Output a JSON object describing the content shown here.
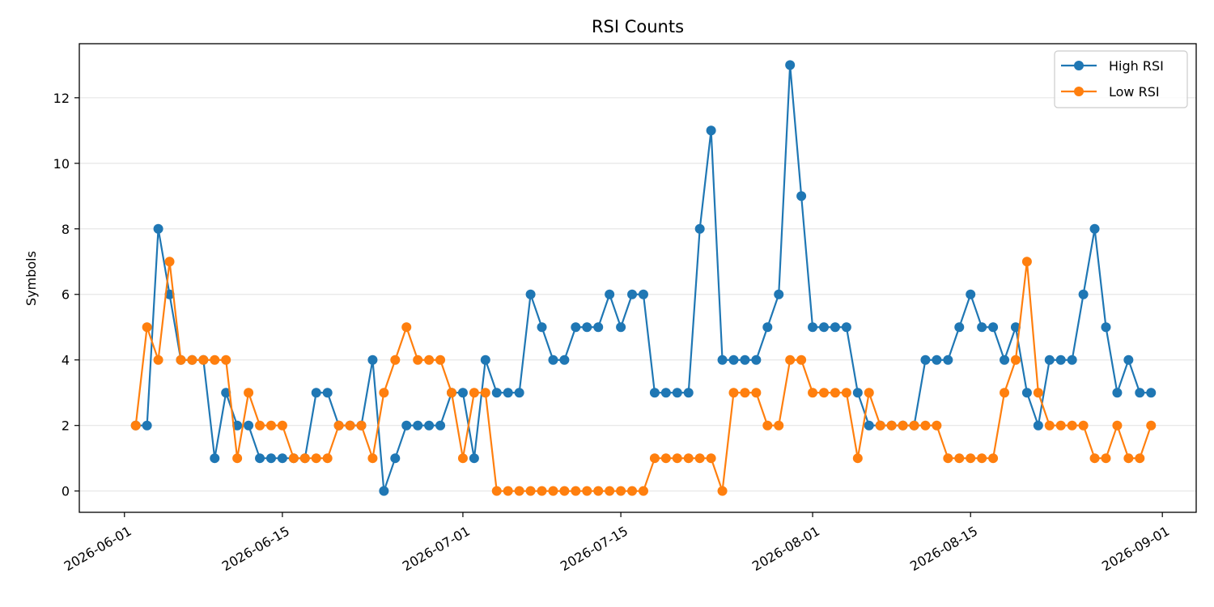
{
  "chart_data": {
    "type": "line",
    "title": "RSI Counts",
    "xlabel": "",
    "ylabel": "Symbols",
    "x_ticks": [
      "2026-06-01",
      "2026-06-15",
      "2026-07-01",
      "2026-07-15",
      "2026-08-01",
      "2026-08-15",
      "2026-09-01"
    ],
    "y_ticks": [
      0,
      2,
      4,
      6,
      8,
      10,
      12
    ],
    "xlim": [
      "2026-05-28",
      "2026-09-04"
    ],
    "ylim": [
      -0.65,
      13.65
    ],
    "grid": "horizontal",
    "legend_position": "top-right",
    "x": [
      "2026-06-02",
      "2026-06-03",
      "2026-06-04",
      "2026-06-05",
      "2026-06-06",
      "2026-06-07",
      "2026-06-08",
      "2026-06-09",
      "2026-06-10",
      "2026-06-11",
      "2026-06-12",
      "2026-06-13",
      "2026-06-14",
      "2026-06-15",
      "2026-06-16",
      "2026-06-17",
      "2026-06-18",
      "2026-06-19",
      "2026-06-20",
      "2026-06-21",
      "2026-06-22",
      "2026-06-23",
      "2026-06-24",
      "2026-06-25",
      "2026-06-26",
      "2026-06-27",
      "2026-06-28",
      "2026-06-29",
      "2026-06-30",
      "2026-07-01",
      "2026-07-02",
      "2026-07-03",
      "2026-07-04",
      "2026-07-05",
      "2026-07-06",
      "2026-07-07",
      "2026-07-08",
      "2026-07-09",
      "2026-07-10",
      "2026-07-11",
      "2026-07-12",
      "2026-07-13",
      "2026-07-14",
      "2026-07-15",
      "2026-07-16",
      "2026-07-17",
      "2026-07-18",
      "2026-07-19",
      "2026-07-20",
      "2026-07-21",
      "2026-07-22",
      "2026-07-23",
      "2026-07-24",
      "2026-07-25",
      "2026-07-26",
      "2026-07-27",
      "2026-07-28",
      "2026-07-29",
      "2026-07-30",
      "2026-07-31",
      "2026-08-01",
      "2026-08-02",
      "2026-08-03",
      "2026-08-04",
      "2026-08-05",
      "2026-08-06",
      "2026-08-07",
      "2026-08-08",
      "2026-08-09",
      "2026-08-10",
      "2026-08-11",
      "2026-08-12",
      "2026-08-13",
      "2026-08-14",
      "2026-08-15",
      "2026-08-16",
      "2026-08-17",
      "2026-08-18",
      "2026-08-19",
      "2026-08-20",
      "2026-08-21",
      "2026-08-22",
      "2026-08-23",
      "2026-08-24",
      "2026-08-25",
      "2026-08-26",
      "2026-08-27",
      "2026-08-28",
      "2026-08-29",
      "2026-08-30",
      "2026-08-31"
    ],
    "series": [
      {
        "name": "High RSI",
        "color": "#1f77b4",
        "values": [
          2,
          2,
          8,
          6,
          4,
          4,
          4,
          1,
          3,
          2,
          2,
          1,
          1,
          1,
          1,
          1,
          3,
          3,
          2,
          2,
          2,
          4,
          0,
          1,
          2,
          2,
          2,
          2,
          3,
          3,
          1,
          4,
          3,
          3,
          3,
          6,
          5,
          4,
          4,
          5,
          5,
          5,
          6,
          5,
          6,
          6,
          3,
          3,
          3,
          3,
          8,
          11,
          4,
          4,
          4,
          4,
          5,
          6,
          13,
          9,
          5,
          5,
          5,
          5,
          3,
          2,
          2,
          2,
          2,
          2,
          4,
          4,
          4,
          5,
          6,
          5,
          5,
          4,
          5,
          3,
          2,
          4,
          4,
          4,
          6,
          8,
          5,
          3,
          4,
          3,
          3
        ]
      },
      {
        "name": "Low RSI",
        "color": "#ff7f0e",
        "values": [
          2,
          5,
          4,
          7,
          4,
          4,
          4,
          4,
          4,
          1,
          3,
          2,
          2,
          2,
          1,
          1,
          1,
          1,
          2,
          2,
          2,
          1,
          3,
          4,
          5,
          4,
          4,
          4,
          3,
          1,
          3,
          3,
          0,
          0,
          0,
          0,
          0,
          0,
          0,
          0,
          0,
          0,
          0,
          0,
          0,
          0,
          1,
          1,
          1,
          1,
          1,
          1,
          0,
          3,
          3,
          3,
          2,
          2,
          4,
          4,
          3,
          3,
          3,
          3,
          1,
          3,
          2,
          2,
          2,
          2,
          2,
          2,
          1,
          1,
          1,
          1,
          1,
          3,
          4,
          7,
          3,
          2,
          2,
          2,
          2,
          1,
          1,
          2,
          1,
          1,
          2
        ]
      }
    ]
  }
}
